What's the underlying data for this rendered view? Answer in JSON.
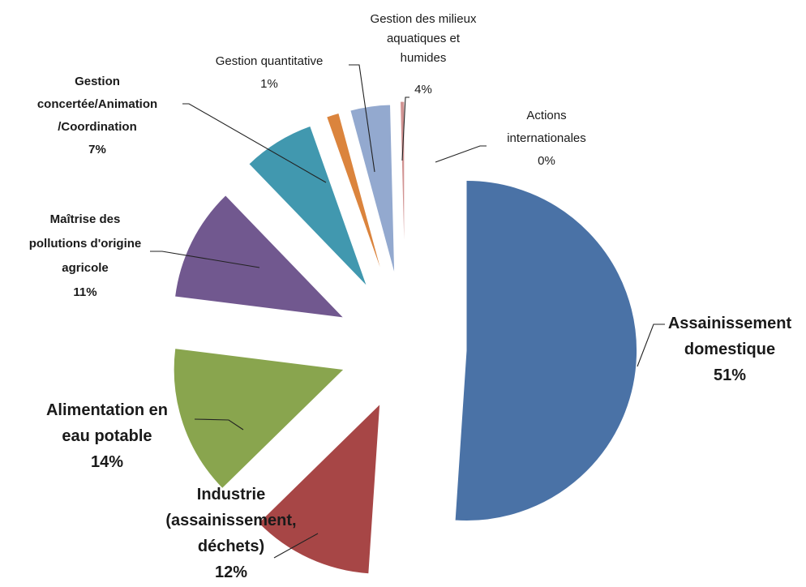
{
  "chart_data": {
    "type": "pie",
    "exploded": true,
    "slices": [
      {
        "name": "Assainissement domestique",
        "label_lines": [
          "Assainissement",
          "domestique"
        ],
        "percent_label": "51%",
        "value": 51,
        "color": "#4A72A6"
      },
      {
        "name": "Industrie (assainissement, déchets)",
        "label_lines": [
          "Industrie",
          "(assainissement,",
          "déchets)"
        ],
        "percent_label": "12%",
        "value": 11.6,
        "color": "#A74646"
      },
      {
        "name": "Alimentation en eau potable",
        "label_lines": [
          "Alimentation en",
          "eau potable"
        ],
        "percent_label": "14%",
        "value": 14.3,
        "color": "#89A54E"
      },
      {
        "name": "Maîtrise des pollutions d'origine agricole",
        "label_lines": [
          "Maîtrise des",
          "pollutions d'origine",
          "agricole"
        ],
        "percent_label": "11%",
        "value": 10.8,
        "color": "#71588F"
      },
      {
        "name": "Gestion concertée/Animation/Coordination",
        "label_lines": [
          "Gestion",
          "concertée/Animation",
          "/Coordination"
        ],
        "percent_label": "7%",
        "value": 6.8,
        "color": "#4198AF"
      },
      {
        "name": "Gestion quantitative",
        "label_lines": [
          "Gestion quantitative"
        ],
        "percent_label": "1%",
        "value": 1.2,
        "color": "#DB843D"
      },
      {
        "name": "Gestion des milieux aquatiques et humides",
        "label_lines": [
          "Gestion des milieux",
          "aquatiques et",
          "humides"
        ],
        "percent_label": "4%",
        "value": 3.8,
        "color": "#93A9CF"
      },
      {
        "name": "Actions internationales",
        "label_lines": [
          "Actions",
          "internationales"
        ],
        "percent_label": "0%",
        "value": 0.4,
        "color": "#D19392"
      }
    ]
  }
}
